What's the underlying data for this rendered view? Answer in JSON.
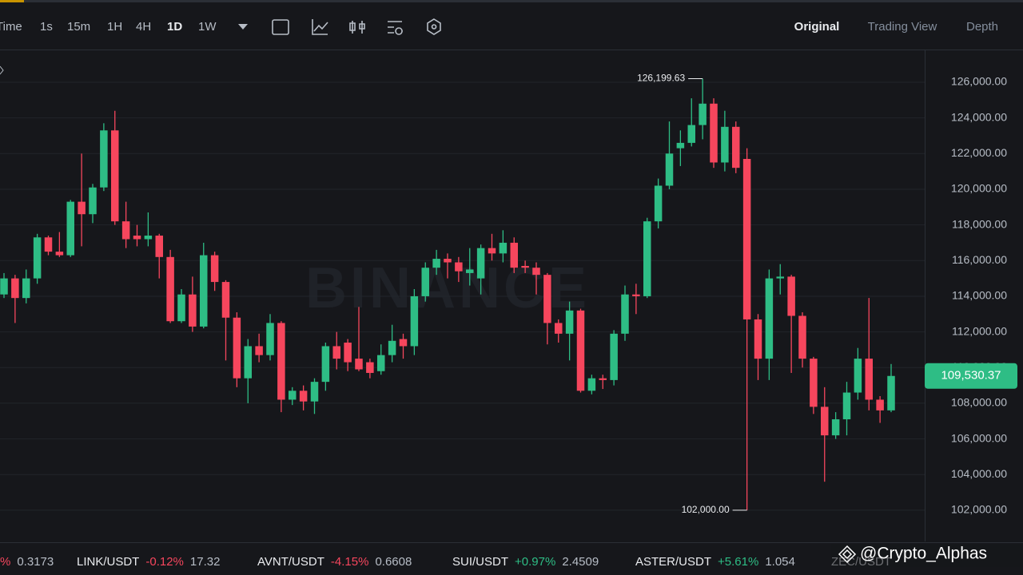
{
  "toolbar": {
    "intervals": [
      "Time",
      "1s",
      "15m",
      "1H",
      "4H",
      "1D",
      "1W"
    ],
    "active_interval": "1D",
    "views": [
      "Original",
      "Trading View",
      "Depth"
    ],
    "active_view": "Original"
  },
  "chart_data": {
    "type": "candlestick",
    "watermark": "BINANCE",
    "up_color": "#2ebd85",
    "down_color": "#f6465d",
    "grid": true,
    "open": [
      114100,
      115000,
      113900,
      115000,
      117300,
      116500,
      116300,
      119300,
      118600,
      120100,
      123300,
      118200,
      117400,
      117200,
      117400,
      116200,
      112600,
      114100,
      112300,
      116300,
      114800,
      112800,
      109400,
      111200,
      110700,
      112500,
      108200,
      108700,
      108100,
      109200,
      111200,
      111400,
      110500,
      110300,
      109800,
      110700,
      111600,
      111200,
      114000,
      115600,
      116100,
      115900,
      115300,
      115000,
      116700,
      116400,
      117000,
      115700,
      115600,
      115200,
      112500,
      111900,
      113200,
      108700,
      109400,
      109300,
      111900,
      114100,
      114000,
      118200,
      120200,
      122300,
      122600,
      123600,
      124800,
      121500,
      123500,
      121700,
      112700,
      110500,
      115000,
      115100,
      112900,
      110500,
      107800,
      106200,
      107100,
      108600,
      110500,
      108200,
      107600
    ],
    "high": [
      115300,
      115200,
      115500,
      117500,
      117400,
      117600,
      119400,
      122000,
      120300,
      123700,
      124400,
      119300,
      118000,
      118700,
      117500,
      116600,
      114400,
      115100,
      117000,
      116500,
      114900,
      113100,
      111600,
      111900,
      113000,
      112600,
      108900,
      109000,
      109400,
      111400,
      112000,
      111600,
      113400,
      110500,
      111300,
      112400,
      111900,
      114400,
      115900,
      116600,
      116400,
      116200,
      116700,
      116900,
      117500,
      117700,
      117300,
      116000,
      115900,
      115300,
      112700,
      113700,
      113300,
      109600,
      109600,
      112100,
      114600,
      114700,
      118400,
      120600,
      123800,
      123300,
      125100,
      126199.63,
      125100,
      124400,
      123800,
      122300,
      113000,
      115500,
      115800,
      115200,
      113100,
      110600,
      108900,
      107500,
      109200,
      111100,
      113900,
      108400,
      110200
    ],
    "low": [
      113900,
      112500,
      113600,
      114700,
      116300,
      116200,
      116200,
      116800,
      118100,
      119900,
      118000,
      116700,
      116800,
      116800,
      115000,
      112500,
      112500,
      112000,
      112200,
      114300,
      110400,
      108900,
      108000,
      110300,
      110400,
      107500,
      107900,
      107600,
      107400,
      108700,
      109900,
      109800,
      109800,
      109400,
      109600,
      110300,
      110500,
      110700,
      113700,
      115200,
      115000,
      114800,
      114600,
      114100,
      116000,
      115900,
      115300,
      115300,
      114100,
      111300,
      111400,
      110400,
      108600,
      108500,
      108800,
      109000,
      111500,
      113000,
      113900,
      117800,
      120000,
      121300,
      122400,
      122800,
      121200,
      121000,
      120900,
      102000,
      109300,
      109300,
      114100,
      109700,
      110000,
      107400,
      103600,
      106000,
      106200,
      108200,
      107600,
      106900,
      107500
    ],
    "close": [
      115000,
      113900,
      115000,
      117300,
      116500,
      116300,
      119300,
      118600,
      120100,
      123300,
      118200,
      117200,
      117200,
      117400,
      116200,
      112600,
      114100,
      112300,
      116300,
      114800,
      112800,
      109400,
      111200,
      110700,
      112500,
      108200,
      108700,
      108100,
      109200,
      111200,
      110500,
      110300,
      109900,
      109700,
      110700,
      111500,
      111200,
      114000,
      115600,
      116100,
      115900,
      115400,
      115500,
      116700,
      116400,
      117000,
      115600,
      115600,
      115200,
      112500,
      111900,
      113200,
      108700,
      109400,
      109300,
      111900,
      114100,
      114000,
      118200,
      120200,
      122000,
      122600,
      123600,
      124800,
      121500,
      123500,
      121200,
      112700,
      110500,
      115000,
      115100,
      112900,
      110500,
      107800,
      106200,
      107100,
      108600,
      110500,
      108200,
      107600,
      109530.37
    ],
    "ylim": [
      100250,
      127790
    ],
    "yticks": [
      {
        "value": 102000,
        "label": "102,000.00"
      },
      {
        "value": 104000,
        "label": "104,000.00"
      },
      {
        "value": 106000,
        "label": "106,000.00"
      },
      {
        "value": 108000,
        "label": "108,000.00"
      },
      {
        "value": 110000,
        "label": "110,000.00"
      },
      {
        "value": 112000,
        "label": "112,000.00"
      },
      {
        "value": 114000,
        "label": "114,000.00"
      },
      {
        "value": 116000,
        "label": "116,000.00"
      },
      {
        "value": 118000,
        "label": "118,000.00"
      },
      {
        "value": 120000,
        "label": "120,000.00"
      },
      {
        "value": 122000,
        "label": "122,000.00"
      },
      {
        "value": 124000,
        "label": "124,000.00"
      },
      {
        "value": 126000,
        "label": "126,000.00"
      }
    ],
    "high_label": {
      "value": 126199.63,
      "label": "126,199.63"
    },
    "low_label": {
      "value": 102000,
      "label": "102,000.00"
    },
    "last_price": {
      "value": 109530.37,
      "label": "109,530.37"
    }
  },
  "ticker": [
    {
      "change": "%",
      "price": "0.3173"
    },
    {
      "symbol": "LINK/USDT",
      "change": "-0.12%",
      "price": "17.32"
    },
    {
      "symbol": "AVNT/USDT",
      "change": "-4.15%",
      "price": "0.6608"
    },
    {
      "symbol": "SUI/USDT",
      "change": "+0.97%",
      "price": "2.4509"
    },
    {
      "symbol": "ASTER/USDT",
      "change": "+5.61%",
      "price": "1.054"
    },
    {
      "symbol": "ZEC/USDT"
    }
  ],
  "credit": "@Crypto_Alphas"
}
